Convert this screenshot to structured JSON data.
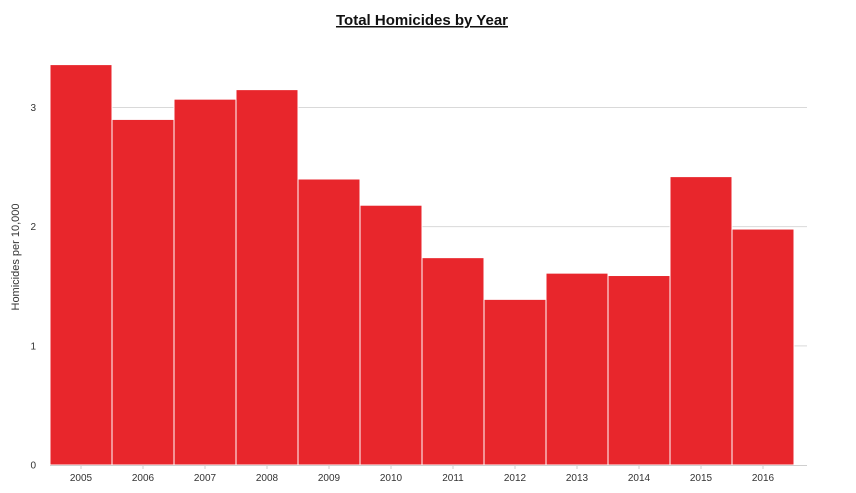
{
  "chart_data": {
    "type": "bar",
    "title": "Total Homicides by Year",
    "xlabel": "",
    "ylabel": "Homicides per 10,000",
    "categories": [
      "2005",
      "2006",
      "2007",
      "2008",
      "2009",
      "2010",
      "2011",
      "2012",
      "2013",
      "2014",
      "2015",
      "2016"
    ],
    "values": [
      3.36,
      2.9,
      3.07,
      3.15,
      2.4,
      2.18,
      1.74,
      1.39,
      1.61,
      1.59,
      2.42,
      1.98
    ],
    "yticks": [
      0,
      1,
      2,
      3
    ],
    "ylim": [
      0,
      3.4
    ],
    "grid": true,
    "colors": {
      "bar": "#e8262c",
      "bar_edge": "#ffffff"
    }
  }
}
